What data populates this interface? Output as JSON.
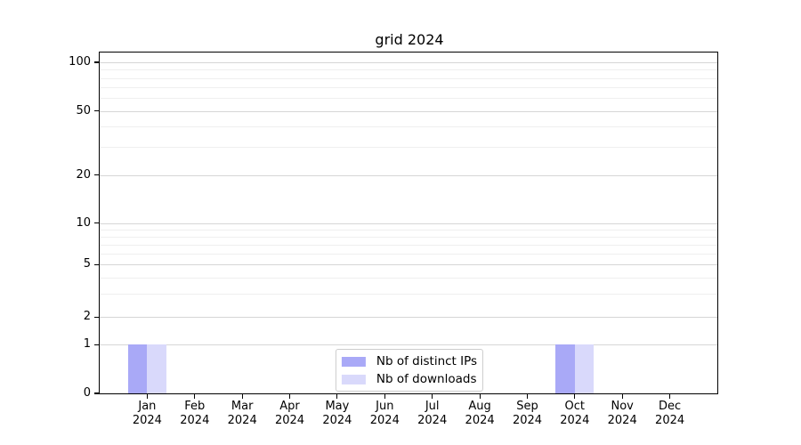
{
  "chart_data": {
    "type": "bar",
    "title": "grid 2024",
    "categories": [
      "Jan",
      "Feb",
      "Mar",
      "Apr",
      "May",
      "Jun",
      "Jul",
      "Aug",
      "Sep",
      "Oct",
      "Nov",
      "Dec"
    ],
    "year_label": "2024",
    "series": [
      {
        "name": "Nb of distinct IPs",
        "color": "#a9a9f7",
        "values": [
          1,
          0,
          0,
          0,
          0,
          0,
          0,
          0,
          0,
          1,
          0,
          0
        ]
      },
      {
        "name": "Nb of downloads",
        "color": "#d9d9fb",
        "values": [
          1,
          0,
          0,
          0,
          0,
          0,
          0,
          0,
          0,
          1,
          0,
          0
        ]
      }
    ],
    "yaxis": {
      "scale": "symlog",
      "major_ticks": [
        0,
        1,
        2,
        5,
        10,
        20,
        50,
        100
      ],
      "minor_ticks": [
        3,
        4,
        6,
        7,
        8,
        9,
        30,
        40,
        60,
        70,
        80,
        90
      ],
      "ylim": [
        0,
        115
      ]
    },
    "xlabel": "",
    "ylabel": "",
    "grid": true,
    "legend": {
      "position": "lower center",
      "entries": [
        "Nb of distinct IPs",
        "Nb of downloads"
      ]
    }
  }
}
